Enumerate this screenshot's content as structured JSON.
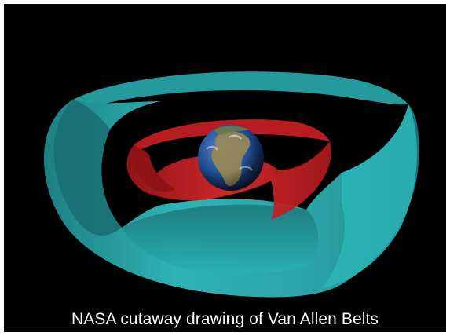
{
  "caption": "NASA cutaway drawing of Van Allen Belts",
  "colors": {
    "background": "#000000",
    "outer_belt": "#2aa7a9",
    "inner_belt": "#c81e22",
    "earth_ocean": "#1f3f7a",
    "earth_land": "#8a7a4a",
    "caption_text": "#ffffff"
  },
  "scene_elements": [
    "outer-radiation-belt",
    "inner-radiation-belt",
    "earth-globe"
  ]
}
